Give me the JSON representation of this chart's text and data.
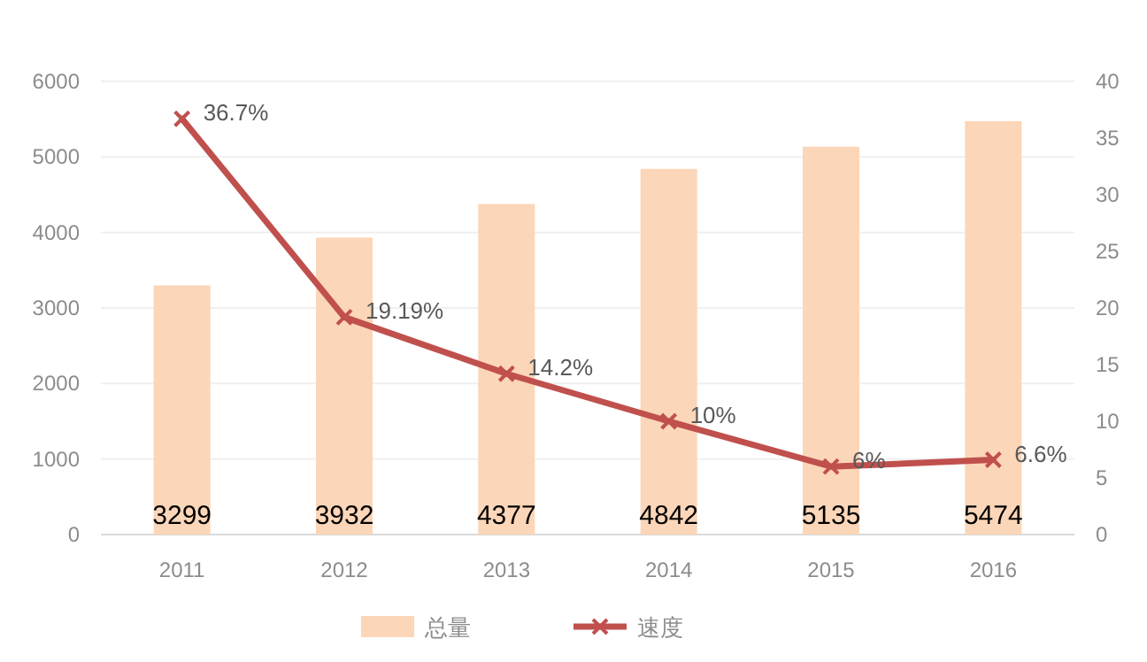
{
  "chart_data": {
    "type": "bar",
    "categories": [
      "2011",
      "2012",
      "2013",
      "2014",
      "2015",
      "2016"
    ],
    "series": [
      {
        "name": "总量",
        "color": "#fbd6b8",
        "values": [
          3299,
          3932,
          4377,
          4842,
          5135,
          5474
        ],
        "value_labels": [
          "3299",
          "3932",
          "4377",
          "4842",
          "5135",
          "5474"
        ]
      },
      {
        "name": "速度",
        "type": "line",
        "axis": "y2",
        "color": "#c0504d",
        "marker": "cross",
        "values": [
          36.7,
          19.19,
          14.2,
          10,
          6,
          6.6
        ],
        "value_labels": [
          "36.7%",
          "19.19%",
          "14.2%",
          "10%",
          "6%",
          "6.6%"
        ]
      }
    ],
    "ylim": [
      0,
      6000
    ],
    "yticks": [
      0,
      1000,
      2000,
      3000,
      4000,
      5000,
      6000
    ],
    "y2lim": [
      0,
      40
    ],
    "y2ticks": [
      0,
      5,
      10,
      15,
      20,
      25,
      30,
      35,
      40
    ],
    "grid": "y",
    "legend": "bottom"
  }
}
